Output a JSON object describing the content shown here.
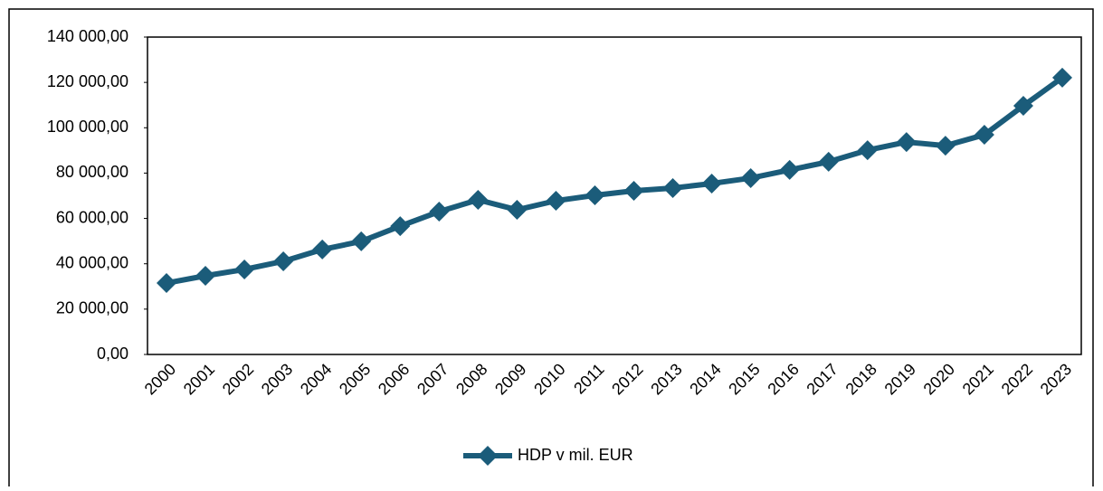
{
  "chart_data": {
    "type": "line",
    "categories": [
      "2000",
      "2001",
      "2002",
      "2003",
      "2004",
      "2005",
      "2006",
      "2007",
      "2008",
      "2009",
      "2010",
      "2011",
      "2012",
      "2013",
      "2014",
      "2015",
      "2016",
      "2017",
      "2018",
      "2019",
      "2020",
      "2021",
      "2022",
      "2023"
    ],
    "series": [
      {
        "name": "HDP v mil. EUR",
        "color": "#1b5c7a",
        "values": [
          31500,
          34700,
          37500,
          41100,
          46300,
          49900,
          56600,
          63000,
          68200,
          63800,
          67800,
          70200,
          72200,
          73400,
          75400,
          77800,
          81400,
          85000,
          90100,
          93700,
          92100,
          96900,
          109700,
          122100
        ]
      }
    ],
    "ylim": [
      0,
      140000
    ],
    "yticks": [
      {
        "value": 0,
        "label": "0,00"
      },
      {
        "value": 20000,
        "label": "20 000,00"
      },
      {
        "value": 40000,
        "label": "40 000,00"
      },
      {
        "value": 60000,
        "label": "60 000,00"
      },
      {
        "value": 80000,
        "label": "80 000,00"
      },
      {
        "value": 100000,
        "label": "100 000,00"
      },
      {
        "value": 120000,
        "label": "120 000,00"
      },
      {
        "value": 140000,
        "label": "140 000,00"
      }
    ],
    "grid": false,
    "legend": "bottom"
  }
}
